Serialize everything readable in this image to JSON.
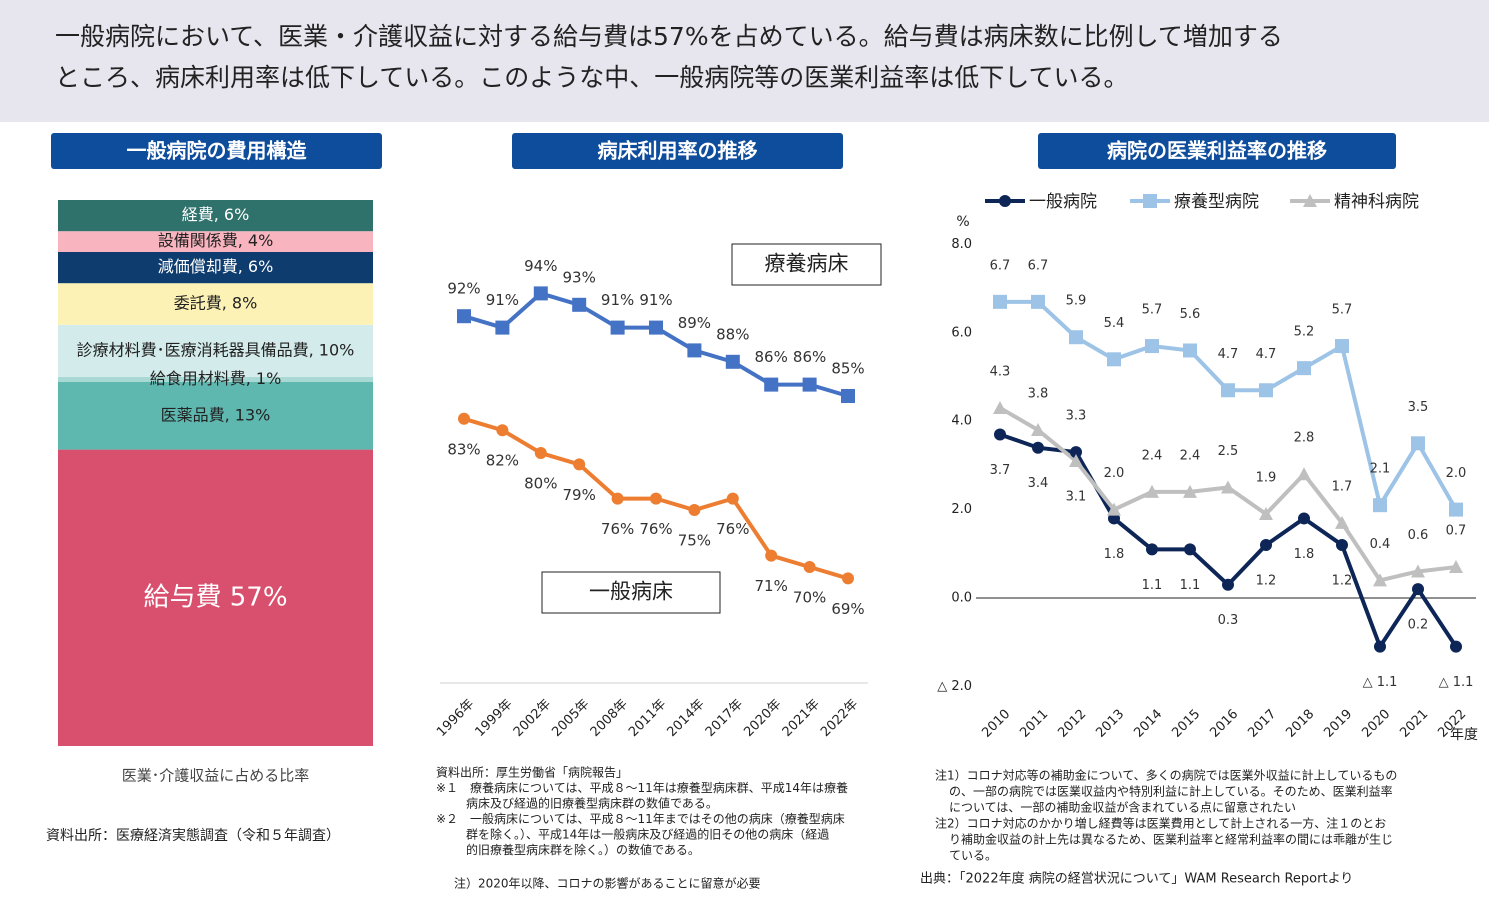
{
  "header": {
    "lines": [
      "一般病院において、医業・介護収益に対する給与費は57%を占めている。給与費は病床数に比例して増加する",
      "ところ、病床利用率は低下している。このような中、一般病院等の医業利益率は低下している。"
    ]
  },
  "chart_data": [
    {
      "type": "stacked_bar",
      "title": "一般病院の費用構造",
      "series": [
        {
          "values": [
            57
          ],
          "value_labels": [
            "給与費 57%"
          ],
          "color": "#d94f6e",
          "label_color": "#ffffff"
        },
        {
          "values": [
            13
          ],
          "value_labels": [
            "医薬品費, 13%"
          ],
          "color": "#5fb8b0",
          "label_color": "#222222"
        },
        {
          "values": [
            1
          ],
          "value_labels": [
            "給食用材料費, 1%"
          ],
          "color": "#a9d9d5",
          "label_color": "#222222"
        },
        {
          "values": [
            10
          ],
          "value_labels": [
            "診療材料費･医療消耗器具備品費, 10%"
          ],
          "color": "#d3ebea",
          "label_color": "#222222"
        },
        {
          "values": [
            8
          ],
          "value_labels": [
            "委託費, 8%"
          ],
          "color": "#fdf2b5",
          "label_color": "#222222"
        },
        {
          "values": [
            6
          ],
          "value_labels": [
            "減価償却費, 6%"
          ],
          "color": "#0f3c6e",
          "label_color": "#ffffff"
        },
        {
          "values": [
            4
          ],
          "value_labels": [
            "設備関係費, 4%"
          ],
          "color": "#f8b4bf",
          "label_color": "#222222"
        },
        {
          "values": [
            6
          ],
          "value_labels": [
            "経費, 6%"
          ],
          "color": "#2f716b",
          "label_color": "#ffffff"
        }
      ],
      "caption": "医業･介護収益に占める比率",
      "source": "資料出所：医療経済実態調査（令和５年調査）"
    },
    {
      "type": "line",
      "title": "病床利用率の推移",
      "categories": [
        "1996年",
        "1999年",
        "2002年",
        "2005年",
        "2008年",
        "2011年",
        "2014年",
        "2017年",
        "2020年",
        "2021年",
        "2022年"
      ],
      "series": [
        {
          "name": "療養病床",
          "color": "#4472c4",
          "marker": "square",
          "values": [
            92,
            91,
            94,
            93,
            91,
            91,
            89,
            88,
            86,
            86,
            85
          ],
          "value_labels": [
            "92%",
            "91%",
            "94%",
            "93%",
            "91%",
            "91%",
            "89%",
            "88%",
            "86%",
            "86%",
            "85%"
          ]
        },
        {
          "name": "一般病床",
          "color": "#ed7d31",
          "marker": "circle",
          "values": [
            83,
            82,
            80,
            79,
            76,
            76,
            75,
            76,
            71,
            70,
            69
          ],
          "value_labels": [
            "83%",
            "82%",
            "80%",
            "79%",
            "76%",
            "76%",
            "75%",
            "76%",
            "71%",
            "70%",
            "69%"
          ]
        }
      ],
      "ylim": [
        60,
        100
      ],
      "notes": [
        "資料出所：厚生労働省「病院報告」",
        "※１　療養病床については、平成８～11年は療養型病床群、平成14年は療養",
        "病床及び経過的旧療養型病床群の数値である。",
        "※２　一般病床については、平成８～11年まではその他の病床（療養型病床",
        "群を除く。）、平成14年は一般病床及び経過的旧その他の病床（経過",
        "的旧療養型病床群を除く。）の数値である。",
        "注）2020年以降、コロナの影響があることに留意が必要"
      ]
    },
    {
      "type": "line",
      "title": "病院の医業利益率の推移",
      "categories": [
        "2010",
        "2011",
        "2012",
        "2013",
        "2014",
        "2015",
        "2016",
        "2017",
        "2018",
        "2019",
        "2020",
        "2021",
        "2022"
      ],
      "x_label": "年度",
      "y_label": "%",
      "series": [
        {
          "name": "一般病院",
          "color": "#0d2657",
          "marker": "circle",
          "values": [
            3.7,
            3.4,
            3.3,
            1.8,
            1.1,
            1.1,
            0.3,
            1.2,
            1.8,
            1.2,
            -1.1,
            0.2,
            -1.1
          ],
          "value_labels": [
            "3.7",
            "3.4",
            "3.3",
            "1.8",
            "1.1",
            "1.1",
            "0.3",
            "1.2",
            "1.8",
            "1.2",
            "△ 1.1",
            "0.2",
            "△ 1.1"
          ]
        },
        {
          "name": "療養型病院",
          "color": "#9dc3e6",
          "marker": "square",
          "values": [
            6.7,
            6.7,
            5.9,
            5.4,
            5.7,
            5.6,
            4.7,
            4.7,
            5.2,
            5.7,
            2.1,
            3.5,
            2.0
          ],
          "value_labels": [
            "6.7",
            "6.7",
            "5.9",
            "5.4",
            "5.7",
            "5.6",
            "4.7",
            "4.7",
            "5.2",
            "5.7",
            "2.1",
            "3.5",
            "2.0"
          ]
        },
        {
          "name": "精神科病院",
          "color": "#bfbfbf",
          "marker": "triangle",
          "values": [
            4.3,
            3.8,
            3.1,
            2.0,
            2.4,
            2.4,
            2.5,
            1.9,
            2.8,
            1.7,
            0.4,
            0.6,
            0.7
          ],
          "value_labels": [
            "4.3",
            "3.8",
            "3.1",
            "2.0",
            "2.4",
            "2.4",
            "2.5",
            "1.9",
            "2.8",
            "1.7",
            "0.4",
            "0.6",
            "0.7"
          ]
        }
      ],
      "ylim": [
        -2,
        8
      ],
      "yticks": [
        {
          "value": 8,
          "label": "8.0"
        },
        {
          "value": 6,
          "label": "6.0"
        },
        {
          "value": 4,
          "label": "4.0"
        },
        {
          "value": 2,
          "label": "2.0"
        },
        {
          "value": 0,
          "label": "0.0"
        },
        {
          "value": -2,
          "label": "△ 2.0"
        }
      ],
      "notes": [
        "注1）コロナ対応等の補助金について、多くの病院では医業外収益に計上しているもの",
        "の、一部の病院では医業収益内や特別利益に計上している。そのため、医業利益率",
        "については、一部の補助金収益が含まれている点に留意されたい",
        "注2）コロナ対応のかかり増し経費等は医業費用として計上される一方、注１のとお",
        "り補助金収益の計上先は異なるため、医業利益率と経常利益率の間には乖離が生じ",
        "ている。"
      ],
      "source": "出典：「2022年度 病院の経営状況について」WAM Research Reportより"
    }
  ]
}
